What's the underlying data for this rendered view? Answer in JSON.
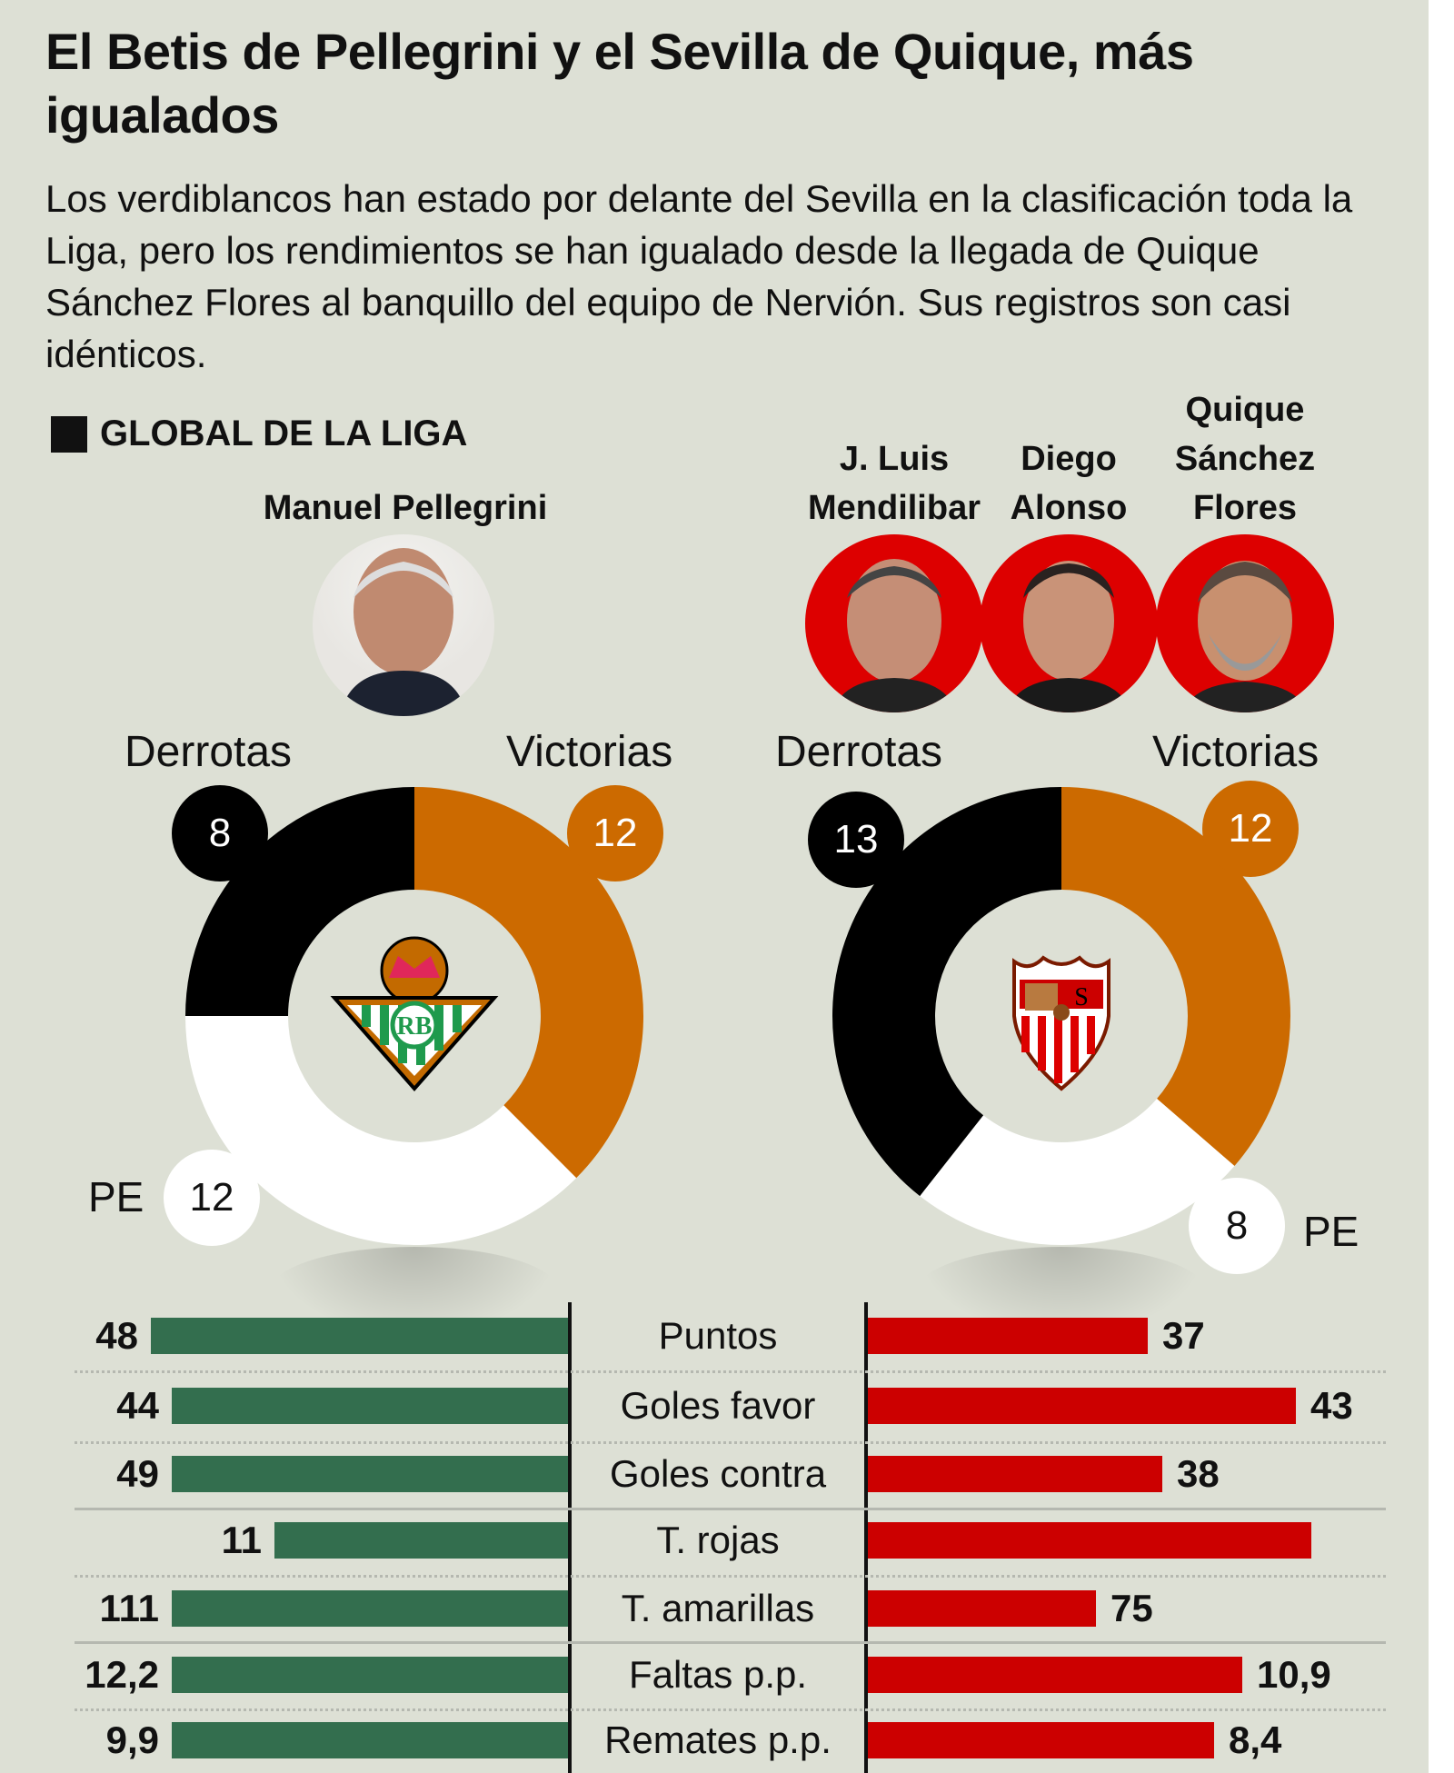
{
  "title": "El Betis de Pellegrini y el Sevilla de Quique, más igualados",
  "subtitle": "Los verdiblancos han estado por delante del Sevilla en la clasificación toda la Liga, pero los rendimientos se han igualado desde la llegada de Quique Sánchez Flores al banquillo del equipo de Nervión. Sus registros son casi idénticos.",
  "section_label": "GLOBAL DE LA LIGA",
  "coaches": {
    "betis": [
      "Manuel Pellegrini"
    ],
    "sevilla": [
      "J. Luis Mendilibar",
      "Diego Alonso",
      "Quique Sánchez Flores"
    ]
  },
  "colors": {
    "background": "#dde0d5",
    "victorias": "#cc6a00",
    "derrotas": "#000000",
    "empates": "#ffffff",
    "betis": "#336e4e",
    "sevilla": "#cc0000"
  },
  "chart_data": [
    {
      "type": "pie",
      "team": "Betis",
      "labels": {
        "derrotas": "Derrotas",
        "victorias": "Victorias",
        "empates": "PE"
      },
      "values": {
        "victorias": 12,
        "empates": 12,
        "derrotas": 8
      },
      "display": {
        "victorias": "12",
        "empates": "12",
        "derrotas": "8"
      }
    },
    {
      "type": "pie",
      "team": "Sevilla",
      "labels": {
        "derrotas": "Derrotas",
        "victorias": "Victorias",
        "empates": "PE"
      },
      "values": {
        "victorias": 12,
        "empates": 8,
        "derrotas": 13
      },
      "display": {
        "victorias": "12",
        "empates": "8",
        "derrotas": "13"
      }
    },
    {
      "type": "bar",
      "orientation": "diverging-horizontal",
      "categories": [
        "Puntos",
        "Goles favor",
        "Goles contra",
        "T. rojas",
        "T. amarillas",
        "Faltas p.p.",
        "Remates p.p."
      ],
      "series": [
        {
          "team": "Betis",
          "values": [
            48,
            44,
            49,
            11,
            111,
            12.2,
            9.9
          ],
          "labels": [
            "48",
            "44",
            "49",
            "11",
            "111",
            "12,2",
            "9,9"
          ]
        },
        {
          "team": "Sevilla",
          "values": [
            37,
            43,
            38,
            null,
            75,
            10.9,
            8.4
          ],
          "labels": [
            "37",
            "43",
            "38",
            "",
            "75",
            "10,9",
            "8,4"
          ]
        }
      ]
    }
  ]
}
